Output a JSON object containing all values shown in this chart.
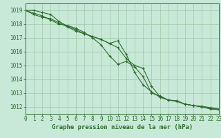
{
  "title": "Graphe pression niveau de la mer (hPa)",
  "background_color": "#c8e8d8",
  "grid_color": "#a0c8a8",
  "line_color": "#2d6b2d",
  "xlim": [
    0,
    23
  ],
  "ylim": [
    1011.5,
    1019.5
  ],
  "yticks": [
    1012,
    1013,
    1014,
    1015,
    1016,
    1017,
    1018,
    1019
  ],
  "xticks": [
    0,
    1,
    2,
    3,
    4,
    5,
    6,
    7,
    8,
    9,
    10,
    11,
    12,
    13,
    14,
    15,
    16,
    17,
    18,
    19,
    20,
    21,
    22,
    23
  ],
  "series": [
    [
      1019.0,
      1018.7,
      1018.5,
      1018.4,
      1018.1,
      1017.8,
      1017.5,
      1017.3,
      1017.1,
      1016.9,
      1016.6,
      1016.8,
      1015.8,
      1014.5,
      1013.6,
      1013.1,
      1012.7,
      1012.5,
      1012.4,
      1012.2,
      1012.1,
      1012.0,
      1011.9,
      1011.85
    ],
    [
      1019.0,
      1018.8,
      1018.6,
      1018.3,
      1018.0,
      1017.9,
      1017.7,
      1017.4,
      1017.0,
      1016.5,
      1015.7,
      1015.1,
      1015.3,
      1014.9,
      1014.2,
      1013.0,
      1012.8,
      1012.5,
      1012.45,
      1012.2,
      1012.1,
      1012.05,
      1011.95,
      1011.85
    ],
    [
      1019.0,
      1019.0,
      1018.85,
      1018.7,
      1018.2,
      1017.85,
      1017.6,
      1017.3,
      1017.1,
      1016.9,
      1016.6,
      1016.3,
      1015.5,
      1015.0,
      1014.8,
      1013.5,
      1012.75,
      1012.5,
      1012.45,
      1012.2,
      1012.1,
      1012.0,
      1011.85,
      1011.8
    ]
  ],
  "tick_fontsize": 5.5,
  "label_fontsize": 6.5
}
